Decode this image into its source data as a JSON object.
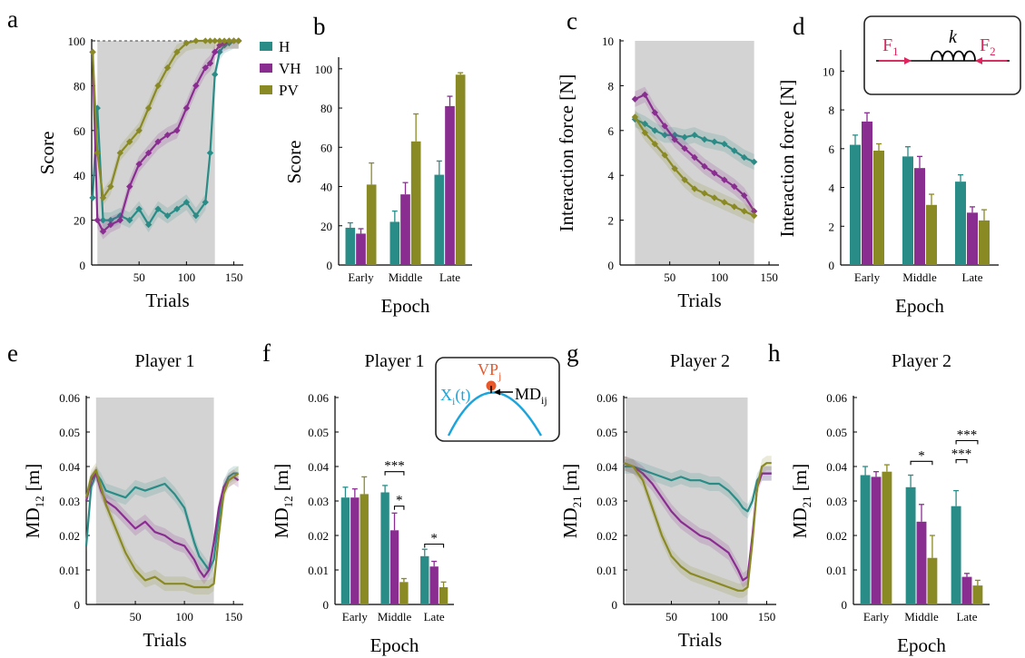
{
  "colors": {
    "H": "#2a8c87",
    "VH": "#8a2d91",
    "PV": "#8a8a25",
    "shade": "#d3d3d3",
    "VP": "#e8582a",
    "X": "#1aa5dd",
    "F": "#e0245e"
  },
  "legend": [
    {
      "key": "H",
      "label": "H"
    },
    {
      "key": "VH",
      "label": "VH"
    },
    {
      "key": "PV",
      "label": "PV"
    }
  ],
  "inset_spring": {
    "f1": "F",
    "f1_sub": "1",
    "f2": "F",
    "f2_sub": "2",
    "k": "k"
  },
  "inset_vp": {
    "vp": "VP",
    "vp_sub": "j",
    "x": "X",
    "x_sub": "i",
    "x_suffix": "(t)",
    "md": "MD",
    "md_sub": "ij"
  },
  "chart_data": [
    {
      "panel": "a",
      "type": "line",
      "xlabel": "Trials",
      "ylabel": "Score",
      "xlim": [
        0,
        160
      ],
      "ylim": [
        0,
        100
      ],
      "xticks": [
        50,
        100,
        150
      ],
      "yticks": [
        0,
        20,
        40,
        60,
        80,
        100
      ],
      "shaded_trials": [
        6,
        130
      ],
      "reference_line": 100,
      "series": [
        {
          "key": "H",
          "x": [
            1,
            6,
            12,
            20,
            30,
            40,
            50,
            60,
            70,
            80,
            90,
            100,
            110,
            120,
            125,
            130,
            135,
            140,
            145,
            150,
            155
          ],
          "y": [
            30,
            70,
            20,
            20,
            22,
            20,
            25,
            18,
            25,
            22,
            25,
            28,
            22,
            28,
            50,
            85,
            95,
            98,
            99,
            100,
            100
          ]
        },
        {
          "key": "VH",
          "x": [
            1,
            6,
            12,
            20,
            30,
            40,
            50,
            60,
            70,
            80,
            90,
            100,
            110,
            120,
            125,
            130,
            135,
            140,
            145,
            150,
            155
          ],
          "y": [
            95,
            20,
            15,
            18,
            20,
            35,
            45,
            50,
            55,
            58,
            60,
            70,
            80,
            88,
            90,
            95,
            98,
            99,
            100,
            100,
            100
          ]
        },
        {
          "key": "PV",
          "x": [
            1,
            6,
            12,
            20,
            30,
            40,
            50,
            60,
            70,
            80,
            90,
            100,
            110,
            120,
            125,
            130,
            135,
            140,
            145,
            150,
            155
          ],
          "y": [
            95,
            50,
            30,
            35,
            50,
            55,
            60,
            70,
            80,
            88,
            95,
            99,
            100,
            100,
            100,
            100,
            100,
            100,
            100,
            100,
            100
          ]
        }
      ]
    },
    {
      "panel": "b",
      "type": "bar",
      "xlabel": "Epoch",
      "ylabel": "Score",
      "categories": [
        "Early",
        "Middle",
        "Late"
      ],
      "ylim": [
        0,
        105
      ],
      "yticks": [
        0,
        20,
        40,
        60,
        80,
        100
      ],
      "series": [
        {
          "key": "H",
          "values": [
            19,
            22,
            46
          ],
          "errors": [
            2.5,
            5.5,
            7
          ]
        },
        {
          "key": "VH",
          "values": [
            16,
            36,
            81
          ],
          "errors": [
            2.5,
            6,
            5
          ]
        },
        {
          "key": "PV",
          "values": [
            41,
            63,
            97
          ],
          "errors": [
            11,
            14,
            1
          ]
        }
      ]
    },
    {
      "panel": "c",
      "type": "line",
      "xlabel": "Trials",
      "ylabel": "Interaction force [N]",
      "xlim": [
        0,
        160
      ],
      "ylim": [
        0,
        10
      ],
      "xticks": [
        50,
        100,
        150
      ],
      "yticks": [
        0,
        2,
        4,
        6,
        8,
        10
      ],
      "shaded_trials": [
        15,
        135
      ],
      "series": [
        {
          "key": "H",
          "x": [
            15,
            25,
            35,
            45,
            55,
            65,
            75,
            85,
            95,
            105,
            115,
            125,
            135
          ],
          "y": [
            6.5,
            6.3,
            6.0,
            5.8,
            5.8,
            5.7,
            5.8,
            5.6,
            5.5,
            5.4,
            5.1,
            4.8,
            4.6
          ]
        },
        {
          "key": "VH",
          "x": [
            15,
            25,
            35,
            45,
            55,
            65,
            75,
            85,
            95,
            105,
            115,
            125,
            135
          ],
          "y": [
            7.4,
            7.6,
            6.8,
            6.2,
            5.6,
            5.2,
            4.8,
            4.4,
            4.1,
            3.8,
            3.5,
            3.1,
            2.4
          ]
        },
        {
          "key": "PV",
          "x": [
            15,
            25,
            35,
            45,
            55,
            65,
            75,
            85,
            95,
            105,
            115,
            125,
            135
          ],
          "y": [
            6.6,
            5.9,
            5.4,
            4.9,
            4.3,
            3.8,
            3.4,
            3.2,
            3.0,
            2.8,
            2.6,
            2.4,
            2.2
          ]
        }
      ]
    },
    {
      "panel": "d",
      "type": "bar",
      "xlabel": "Epoch",
      "ylabel": "Interaction force [N]",
      "categories": [
        "Early",
        "Middle",
        "Late"
      ],
      "ylim": [
        0,
        11
      ],
      "yticks": [
        0,
        2,
        4,
        6,
        8,
        10
      ],
      "series": [
        {
          "key": "H",
          "values": [
            6.2,
            5.6,
            4.3
          ],
          "errors": [
            0.5,
            0.5,
            0.35
          ]
        },
        {
          "key": "VH",
          "values": [
            7.4,
            5.0,
            2.7
          ],
          "errors": [
            0.45,
            0.6,
            0.3
          ]
        },
        {
          "key": "PV",
          "values": [
            5.9,
            3.1,
            2.3
          ],
          "errors": [
            0.35,
            0.55,
            0.55
          ]
        }
      ]
    },
    {
      "panel": "e",
      "type": "line",
      "title": "Player 1",
      "xlabel": "Trials",
      "ylabel": "MD",
      "ylabel_sub": "12",
      "ylabel_suffix": " [m]",
      "xlim": [
        0,
        160
      ],
      "ylim": [
        0,
        0.06
      ],
      "xticks": [
        50,
        100,
        150
      ],
      "yticks": [
        0,
        0.01,
        0.02,
        0.03,
        0.04,
        0.05,
        0.06
      ],
      "shaded_trials": [
        10,
        130
      ],
      "series": [
        {
          "key": "H",
          "x": [
            0,
            5,
            10,
            15,
            20,
            30,
            40,
            50,
            60,
            70,
            80,
            90,
            100,
            110,
            115,
            120,
            125,
            130,
            135,
            140,
            145,
            150,
            155
          ],
          "y": [
            0.017,
            0.034,
            0.038,
            0.036,
            0.033,
            0.032,
            0.031,
            0.034,
            0.033,
            0.034,
            0.035,
            0.032,
            0.028,
            0.018,
            0.014,
            0.012,
            0.01,
            0.013,
            0.025,
            0.034,
            0.037,
            0.038,
            0.038
          ]
        },
        {
          "key": "VH",
          "x": [
            0,
            5,
            10,
            15,
            20,
            30,
            40,
            50,
            60,
            70,
            80,
            90,
            100,
            110,
            115,
            120,
            125,
            130,
            135,
            140,
            145,
            150,
            155
          ],
          "y": [
            0.03,
            0.036,
            0.038,
            0.033,
            0.03,
            0.028,
            0.025,
            0.022,
            0.024,
            0.021,
            0.02,
            0.018,
            0.017,
            0.013,
            0.01,
            0.008,
            0.01,
            0.018,
            0.028,
            0.034,
            0.036,
            0.037,
            0.036
          ]
        },
        {
          "key": "PV",
          "x": [
            0,
            5,
            10,
            15,
            20,
            30,
            40,
            50,
            60,
            70,
            80,
            90,
            100,
            110,
            115,
            120,
            125,
            130,
            135,
            140,
            145,
            150,
            155
          ],
          "y": [
            0.031,
            0.037,
            0.039,
            0.034,
            0.029,
            0.022,
            0.015,
            0.01,
            0.007,
            0.008,
            0.006,
            0.006,
            0.006,
            0.005,
            0.005,
            0.005,
            0.005,
            0.006,
            0.02,
            0.032,
            0.036,
            0.037,
            0.038
          ]
        }
      ]
    },
    {
      "panel": "f",
      "type": "bar",
      "title": "Player 1",
      "xlabel": "Epoch",
      "ylabel": "MD",
      "ylabel_sub": "12",
      "ylabel_suffix": " [m]",
      "categories": [
        "Early",
        "Middle",
        "Late"
      ],
      "ylim": [
        0,
        0.06
      ],
      "yticks": [
        0,
        0.01,
        0.02,
        0.03,
        0.04,
        0.05,
        0.06
      ],
      "series": [
        {
          "key": "H",
          "values": [
            0.031,
            0.0325,
            0.014
          ],
          "errors": [
            0.003,
            0.002,
            0.002
          ]
        },
        {
          "key": "VH",
          "values": [
            0.031,
            0.0215,
            0.011
          ],
          "errors": [
            0.0025,
            0.005,
            0.0015
          ]
        },
        {
          "key": "PV",
          "values": [
            0.032,
            0.0065,
            0.005
          ],
          "errors": [
            0.005,
            0.001,
            0.0015
          ]
        }
      ],
      "significance": [
        {
          "group": 1,
          "from": "H",
          "to": "PV",
          "label": "***",
          "level": 0.0385
        },
        {
          "group": 1,
          "from": "VH",
          "to": "PV",
          "label": "*",
          "level": 0.0285
        },
        {
          "group": 2,
          "from": "H",
          "to": "PV",
          "label": "*",
          "level": 0.0175
        }
      ]
    },
    {
      "panel": "g",
      "type": "line",
      "title": "Player 2",
      "xlabel": "Trials",
      "ylabel": "MD",
      "ylabel_sub": "21",
      "ylabel_suffix": " [m]",
      "xlim": [
        0,
        160
      ],
      "ylim": [
        0,
        0.06
      ],
      "xticks": [
        50,
        100,
        150
      ],
      "yticks": [
        0,
        0.01,
        0.02,
        0.03,
        0.04,
        0.05,
        0.06
      ],
      "shaded_trials": [
        2,
        130
      ],
      "series": [
        {
          "key": "H",
          "x": [
            0,
            10,
            20,
            30,
            40,
            50,
            60,
            70,
            80,
            90,
            100,
            110,
            120,
            125,
            130,
            135,
            140,
            145,
            150,
            155
          ],
          "y": [
            0.04,
            0.04,
            0.039,
            0.038,
            0.037,
            0.036,
            0.037,
            0.036,
            0.036,
            0.035,
            0.035,
            0.033,
            0.03,
            0.028,
            0.027,
            0.03,
            0.036,
            0.038,
            0.038,
            0.038
          ]
        },
        {
          "key": "VH",
          "x": [
            0,
            10,
            20,
            30,
            40,
            50,
            60,
            70,
            80,
            90,
            100,
            110,
            120,
            125,
            130,
            135,
            140,
            145,
            150,
            155
          ],
          "y": [
            0.041,
            0.04,
            0.038,
            0.035,
            0.031,
            0.027,
            0.024,
            0.022,
            0.02,
            0.019,
            0.017,
            0.015,
            0.01,
            0.007,
            0.008,
            0.02,
            0.034,
            0.038,
            0.038,
            0.038
          ]
        },
        {
          "key": "PV",
          "x": [
            0,
            10,
            20,
            30,
            40,
            50,
            60,
            70,
            80,
            90,
            100,
            110,
            120,
            125,
            130,
            135,
            140,
            145,
            150,
            155
          ],
          "y": [
            0.041,
            0.04,
            0.036,
            0.028,
            0.02,
            0.014,
            0.011,
            0.009,
            0.008,
            0.007,
            0.006,
            0.005,
            0.004,
            0.004,
            0.005,
            0.018,
            0.034,
            0.04,
            0.041,
            0.041
          ]
        }
      ]
    },
    {
      "panel": "h",
      "type": "bar",
      "title": "Player 2",
      "xlabel": "Epoch",
      "ylabel": "MD",
      "ylabel_sub": "21",
      "ylabel_suffix": " [m]",
      "categories": [
        "Early",
        "Middle",
        "Late"
      ],
      "ylim": [
        0,
        0.06
      ],
      "yticks": [
        0,
        0.01,
        0.02,
        0.03,
        0.04,
        0.05,
        0.06
      ],
      "series": [
        {
          "key": "H",
          "values": [
            0.0375,
            0.034,
            0.0285
          ],
          "errors": [
            0.0025,
            0.0035,
            0.0045
          ]
        },
        {
          "key": "VH",
          "values": [
            0.037,
            0.024,
            0.008
          ],
          "errors": [
            0.0015,
            0.005,
            0.001
          ]
        },
        {
          "key": "PV",
          "values": [
            0.0385,
            0.0135,
            0.0055
          ],
          "errors": [
            0.002,
            0.0065,
            0.0015
          ]
        }
      ],
      "significance": [
        {
          "group": 1,
          "from": "H",
          "to": "PV",
          "label": "*",
          "level": 0.0415
        },
        {
          "group": 2,
          "from": "H",
          "to": "PV",
          "label": "***",
          "level": 0.0475
        },
        {
          "group": 2,
          "from": "H",
          "to": "VH",
          "label": "***",
          "level": 0.042
        }
      ]
    }
  ]
}
